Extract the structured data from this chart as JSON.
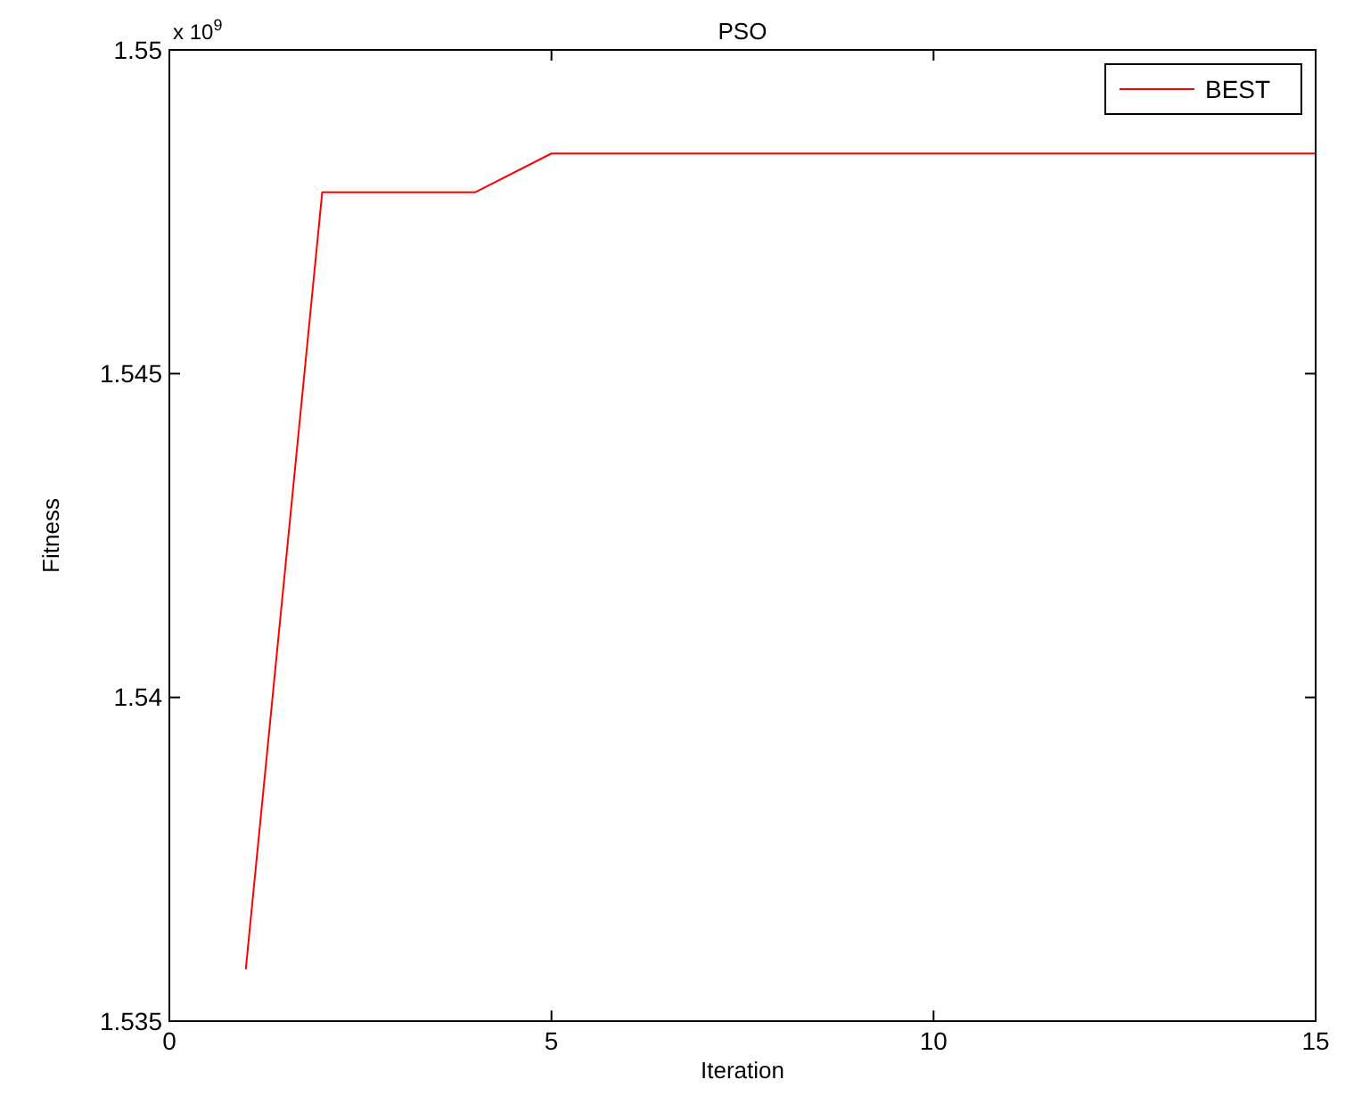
{
  "chart_data": {
    "type": "line",
    "title": "PSO",
    "xlabel": "Iteration",
    "ylabel": "Fitness",
    "annotations": [
      "x 10$^{9}$"
    ],
    "x": [
      1,
      2,
      3,
      4,
      5,
      6,
      7,
      8,
      9,
      10,
      11,
      12,
      13,
      14,
      15
    ],
    "series": [
      {
        "name": "BEST",
        "color": "#ff0000",
        "values": [
          1.5358,
          1.5478,
          1.5478,
          1.5478,
          1.5484,
          1.5484,
          1.5484,
          1.5484,
          1.5484,
          1.5484,
          1.5484,
          1.5484,
          1.5484,
          1.5484,
          1.5484
        ]
      }
    ],
    "xlim": [
      0,
      15
    ],
    "xticks": [
      0,
      5,
      10,
      15
    ],
    "ylim": [
      1.535,
      1.55
    ],
    "yticks": [
      1.535,
      1.54,
      1.545,
      1.55
    ],
    "grid": false,
    "legend": "top right",
    "marker": "none",
    "line_style": "solid"
  }
}
